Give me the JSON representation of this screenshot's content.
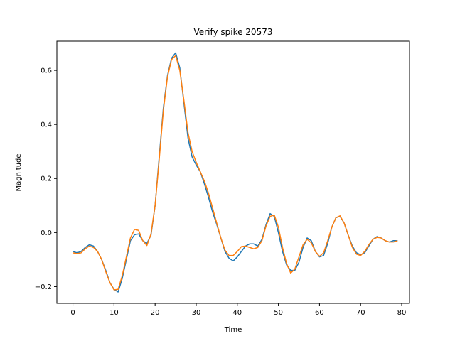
{
  "chart_data": {
    "type": "line",
    "title": "Verify spike 20573",
    "xlabel": "Time",
    "ylabel": "Magnitude",
    "xlim": [
      -3.9,
      81.9
    ],
    "ylim": [
      -0.262,
      0.708
    ],
    "xticks": [
      0,
      10,
      20,
      30,
      40,
      50,
      60,
      70,
      80
    ],
    "yticks": [
      -0.2,
      0.0,
      0.2,
      0.4,
      0.6
    ],
    "ytick_labels": [
      "−0.2",
      "0.0",
      "0.2",
      "0.4",
      "0.6"
    ],
    "grid": false,
    "colors": [
      "#1f77b4",
      "#ff7f0e"
    ],
    "series": [
      {
        "values": [
          -0.07,
          -0.075,
          -0.07,
          -0.055,
          -0.045,
          -0.05,
          -0.07,
          -0.1,
          -0.14,
          -0.185,
          -0.21,
          -0.22,
          -0.17,
          -0.1,
          -0.03,
          -0.008,
          -0.005,
          -0.03,
          -0.04,
          -0.01,
          0.1,
          0.28,
          0.46,
          0.58,
          0.645,
          0.665,
          0.61,
          0.48,
          0.35,
          0.28,
          0.25,
          0.225,
          0.18,
          0.13,
          0.075,
          0.03,
          -0.02,
          -0.07,
          -0.095,
          -0.105,
          -0.09,
          -0.07,
          -0.05,
          -0.042,
          -0.042,
          -0.05,
          -0.025,
          0.03,
          0.07,
          0.06,
          0.0,
          -0.07,
          -0.12,
          -0.14,
          -0.14,
          -0.11,
          -0.055,
          -0.02,
          -0.03,
          -0.07,
          -0.09,
          -0.085,
          -0.04,
          0.02,
          0.055,
          0.06,
          0.035,
          -0.01,
          -0.05,
          -0.075,
          -0.082,
          -0.075,
          -0.05,
          -0.025,
          -0.015,
          -0.02,
          -0.03,
          -0.035,
          -0.03,
          -0.03
        ]
      },
      {
        "values": [
          -0.075,
          -0.078,
          -0.075,
          -0.06,
          -0.05,
          -0.055,
          -0.07,
          -0.1,
          -0.145,
          -0.185,
          -0.212,
          -0.21,
          -0.16,
          -0.09,
          -0.02,
          0.012,
          0.008,
          -0.03,
          -0.048,
          -0.005,
          0.1,
          0.27,
          0.45,
          0.575,
          0.64,
          0.655,
          0.6,
          0.49,
          0.37,
          0.3,
          0.26,
          0.225,
          0.19,
          0.145,
          0.09,
          0.035,
          -0.02,
          -0.065,
          -0.085,
          -0.085,
          -0.07,
          -0.052,
          -0.05,
          -0.055,
          -0.06,
          -0.055,
          -0.03,
          0.025,
          0.06,
          0.065,
          0.02,
          -0.055,
          -0.115,
          -0.15,
          -0.135,
          -0.09,
          -0.045,
          -0.025,
          -0.038,
          -0.07,
          -0.088,
          -0.075,
          -0.03,
          0.02,
          0.055,
          0.062,
          0.035,
          -0.01,
          -0.055,
          -0.08,
          -0.085,
          -0.07,
          -0.045,
          -0.025,
          -0.018,
          -0.02,
          -0.03,
          -0.035,
          -0.035,
          -0.03
        ]
      }
    ]
  }
}
